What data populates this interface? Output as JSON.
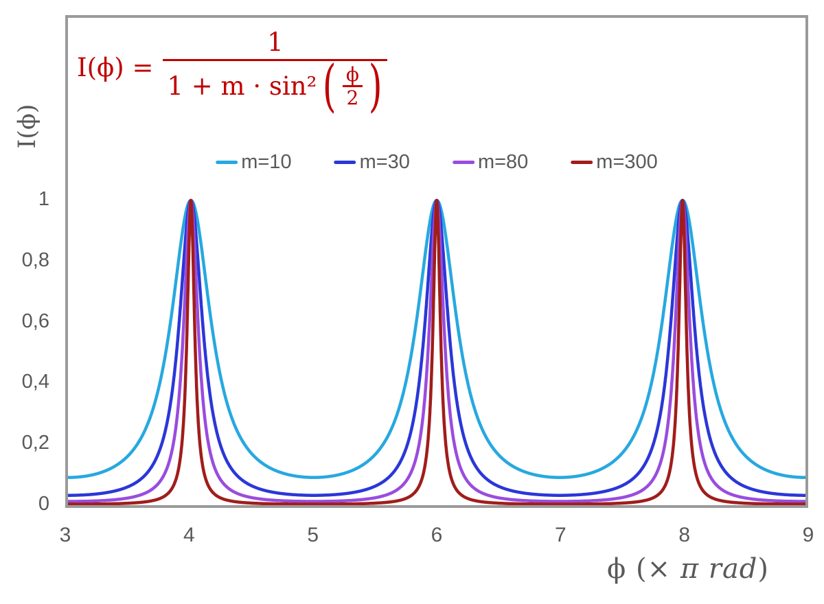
{
  "labels": {
    "y_axis": "I(ϕ)",
    "x_axis_prefix": "ϕ  (× ",
    "x_axis_italic": "π rad",
    "x_axis_suffix": ")"
  },
  "formula": {
    "lhs": "I(ϕ) =",
    "numerator": "1",
    "denominator_prefix": "1 + m · sin²",
    "paren_open": "(",
    "paren_close": ")",
    "inner_numerator": "ϕ",
    "inner_denominator": "2",
    "color": "#C00000"
  },
  "colors": {
    "frame": "#9A9A9A",
    "text": "#595959",
    "formula": "#C00000",
    "background": "#FFFFFF"
  },
  "chart_data": {
    "type": "line",
    "title": "",
    "function": "I(phi) = 1 / (1 + m * sin^2(phi / 2))",
    "x_unit": "× pi rad",
    "x_range": [
      3,
      9
    ],
    "y_range_visible": [
      0,
      1.6
    ],
    "x_tick_values": [
      3,
      4,
      5,
      6,
      7,
      8,
      9
    ],
    "x_tick_labels": [
      "3",
      "4",
      "5",
      "6",
      "7",
      "8",
      "9"
    ],
    "y_tick_values": [
      0,
      0.2,
      0.4,
      0.6,
      0.8,
      1
    ],
    "y_tick_labels": [
      "0",
      "0,2",
      "0,4",
      "0,6",
      "0,8",
      "1"
    ],
    "xlabel": "ϕ (× π rad)",
    "ylabel": "I(ϕ)",
    "grid": false,
    "legend_position": "top-center",
    "peaks_at_x": [
      4,
      6,
      8
    ],
    "peak_value": 1,
    "series": [
      {
        "name": "m=10",
        "m": 10,
        "color": "#27A8E0",
        "min_value": 0.0909
      },
      {
        "name": "m=30",
        "m": 30,
        "color": "#2A37D8",
        "min_value": 0.0323
      },
      {
        "name": "m=80",
        "m": 80,
        "color": "#9A4CDE",
        "min_value": 0.0123
      },
      {
        "name": "m=300",
        "m": 300,
        "color": "#A01D1B",
        "min_value": 0.0033
      }
    ]
  }
}
